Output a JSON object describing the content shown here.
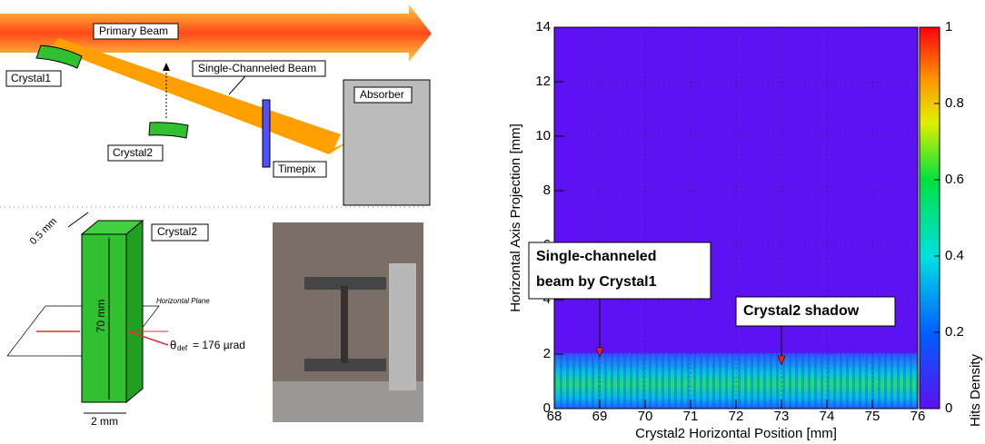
{
  "diagram": {
    "primary_beam": "Primary Beam",
    "crystal1": "Crystal1",
    "single_channeled_beam": "Single-Channeled Beam",
    "absorber": "Absorber",
    "crystal2": "Crystal2",
    "timepix": "Timepix"
  },
  "crystal_sketch": {
    "label": "Crystal2",
    "thickness": "0.5 mm",
    "height": "70 mm",
    "width": "2 mm",
    "plane": "Horizontal Plane",
    "theta": "θ",
    "theta_sub": "def",
    "deflection": "= 176 µrad"
  },
  "chart_data": {
    "type": "heatmap",
    "x_label": "Crystal2 Horizontal Position [mm]",
    "y_label": "Horizontal Axis Projection [mm]",
    "colorbar_label": "Hits Density",
    "xlim": [
      68,
      76
    ],
    "xticks": [
      68,
      69,
      70,
      71,
      72,
      73,
      74,
      75,
      76
    ],
    "ylim": [
      0,
      14
    ],
    "yticks": [
      0,
      2,
      4,
      6,
      8,
      10,
      12,
      14
    ],
    "clim": [
      0,
      1
    ],
    "cticks": [
      0,
      0.2,
      0.4,
      0.6,
      0.8,
      1
    ],
    "grid": true,
    "annotations": [
      {
        "lines": [
          "Single-channeled",
          "beam by Crystal1"
        ],
        "x": 69,
        "y": 1.9
      },
      {
        "lines": [
          "Crystal2 shadow"
        ],
        "x": 73,
        "y": 1.6
      }
    ]
  }
}
